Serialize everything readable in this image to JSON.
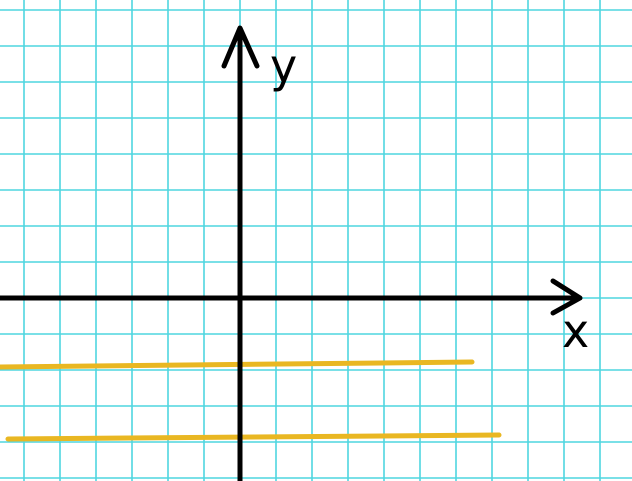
{
  "axes": {
    "x_label": "x",
    "y_label": "y",
    "axis_color": "#000000"
  },
  "grid": {
    "visible": true,
    "color": "#4fd6df"
  },
  "lines": {
    "color": "#e9b722",
    "count": 2
  }
}
